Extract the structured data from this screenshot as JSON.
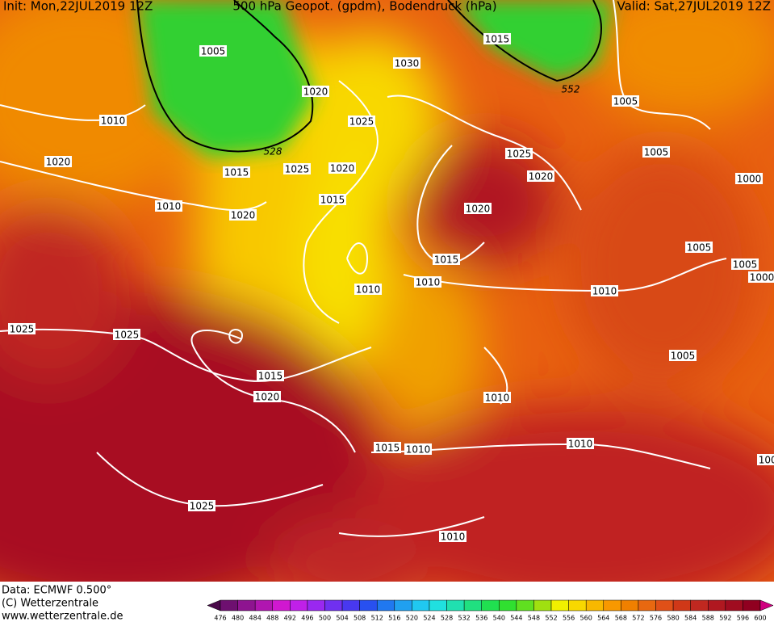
{
  "header": {
    "init": "Init: Mon,22JUL2019 12Z",
    "title": "500 hPa Geopot. (gpdm), Bodendruck (hPa)",
    "valid": "Valid: Sat,27JUL2019 12Z"
  },
  "map": {
    "isobar_labels": [
      1005,
      1010,
      1020,
      1010,
      1020,
      1025,
      1015,
      1025,
      1020,
      1020,
      1015,
      1030,
      1015,
      1005,
      1025,
      1020,
      1005,
      1000,
      1020,
      1015,
      1010,
      1010,
      1005,
      1005,
      1000,
      1010,
      1025,
      1025,
      1005,
      1015,
      1020,
      1010,
      1015,
      1010,
      1010,
      1000,
      1025,
      1010
    ],
    "geopotential_labels": [
      552,
      528
    ]
  },
  "footer": {
    "data": "Data: ECMWF  0.500°",
    "copyright": "(C) Wetterzentrale",
    "url": "www.wetterzentrale.de"
  },
  "colorbar": {
    "levels": [
      476,
      480,
      484,
      488,
      492,
      496,
      500,
      504,
      508,
      512,
      516,
      520,
      524,
      528,
      532,
      536,
      540,
      544,
      548,
      552,
      556,
      560,
      564,
      568,
      572,
      576,
      580,
      584,
      588,
      592,
      596,
      600
    ],
    "colors": [
      "#4a0a4a",
      "#6e1070",
      "#8e1490",
      "#b016b0",
      "#d018d0",
      "#c020e8",
      "#9a28f0",
      "#7030f0",
      "#4838f0",
      "#2850f0",
      "#2078f0",
      "#20a0f0",
      "#20c8f0",
      "#20e0e0",
      "#20e0b0",
      "#20e080",
      "#20e050",
      "#30e030",
      "#60e020",
      "#a0e010",
      "#f0f000",
      "#f8d800",
      "#f8b800",
      "#f89800",
      "#f08000",
      "#e86810",
      "#e05018",
      "#d03818",
      "#c02820",
      "#b01820",
      "#a00c20",
      "#900020",
      "#d00080"
    ]
  }
}
